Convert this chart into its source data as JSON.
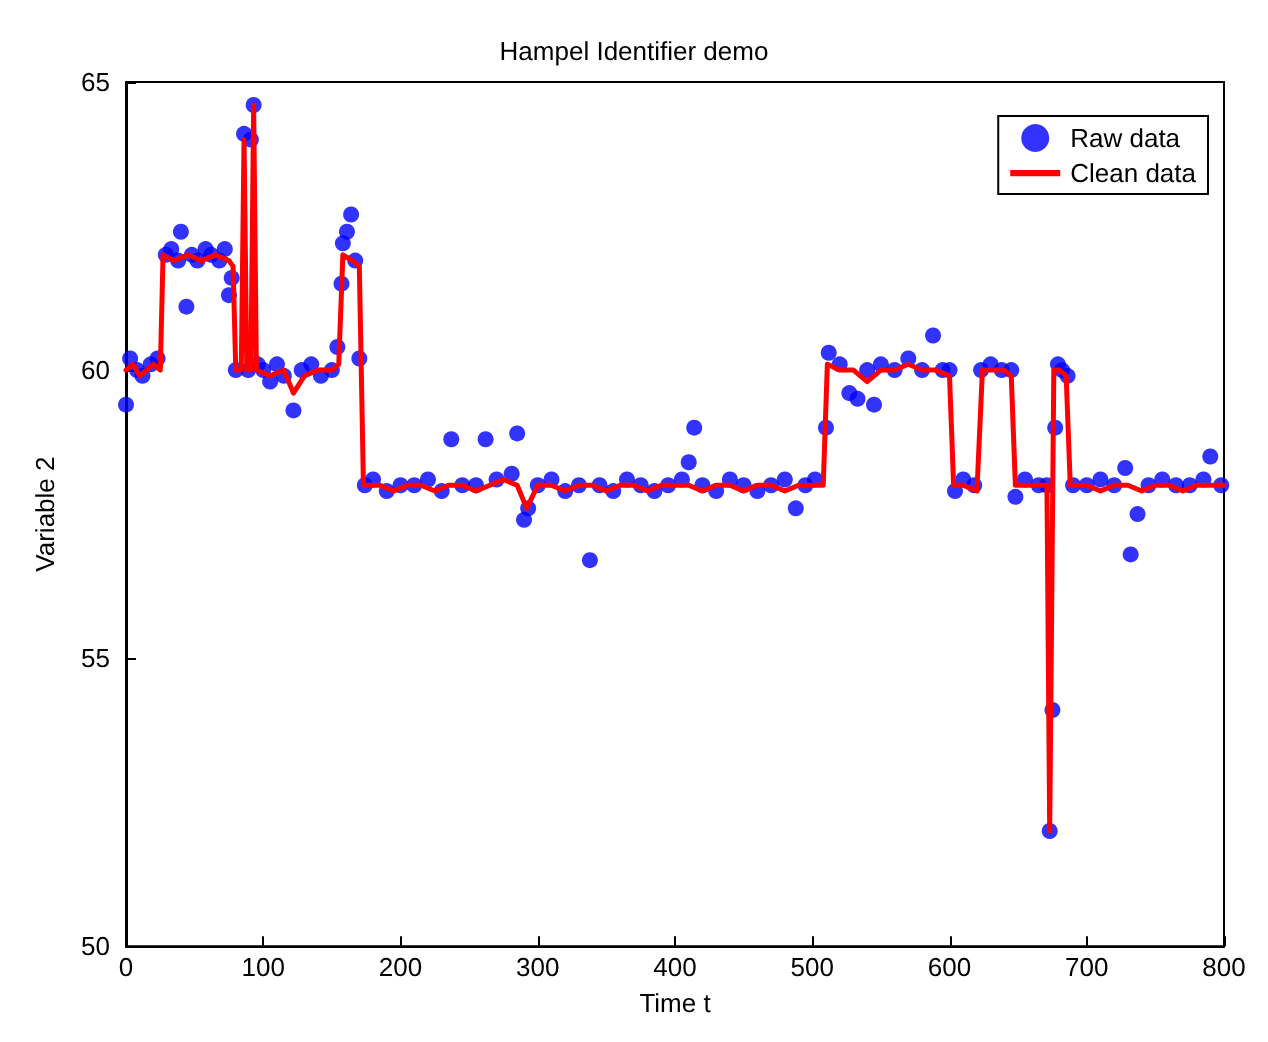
{
  "chart_data": {
    "type": "scatter",
    "title": "Hampel Identifier demo",
    "xlabel": "Time t",
    "ylabel": "Variable 2",
    "xlim": [
      0,
      800
    ],
    "xticks": [
      0,
      100,
      200,
      300,
      400,
      500,
      600,
      700,
      800
    ],
    "ylim": [
      50,
      65
    ],
    "yticks": [
      50,
      55,
      60,
      65
    ],
    "grid": false,
    "legend": "top right",
    "series": [
      {
        "name": "Raw data",
        "marker": "circle",
        "color": "#0000ff",
        "x": [
          0,
          3,
          8,
          12,
          18,
          23,
          29,
          33,
          38,
          40,
          44,
          48,
          52,
          58,
          62,
          68,
          72,
          75,
          77,
          80,
          86,
          89,
          91,
          93,
          96,
          100,
          105,
          110,
          115,
          122,
          128,
          135,
          142,
          150,
          154,
          157,
          158,
          161,
          164,
          167,
          170,
          174,
          180,
          190,
          200,
          210,
          220,
          230,
          237,
          245,
          255,
          262,
          270,
          281,
          285,
          290,
          293,
          300,
          310,
          320,
          330,
          338,
          345,
          355,
          365,
          375,
          385,
          395,
          405,
          410,
          414,
          420,
          430,
          440,
          450,
          460,
          470,
          480,
          488,
          495,
          502,
          510,
          512,
          520,
          527,
          533,
          540,
          545,
          550,
          560,
          570,
          580,
          588,
          595,
          600,
          604,
          610,
          618,
          623,
          630,
          638,
          645,
          648,
          655,
          665,
          671,
          673,
          675,
          677,
          679,
          682,
          686,
          690,
          700,
          710,
          720,
          728,
          732,
          737,
          745,
          755,
          765,
          775,
          785,
          790,
          798
        ],
        "values": [
          59.4,
          60.2,
          60.0,
          59.9,
          60.1,
          60.2,
          62.0,
          62.1,
          61.9,
          62.4,
          61.1,
          62.0,
          61.9,
          62.1,
          62.0,
          61.9,
          62.1,
          61.3,
          61.6,
          60.0,
          64.1,
          60.0,
          64.0,
          64.6,
          60.1,
          60.0,
          59.8,
          60.1,
          59.9,
          59.3,
          60.0,
          60.1,
          59.9,
          60.0,
          60.4,
          61.5,
          62.2,
          62.4,
          62.7,
          61.9,
          60.2,
          58.0,
          58.1,
          57.9,
          58.0,
          58.0,
          58.1,
          57.9,
          58.8,
          58.0,
          58.0,
          58.8,
          58.1,
          58.2,
          58.9,
          57.4,
          57.6,
          58.0,
          58.1,
          57.9,
          58.0,
          56.7,
          58.0,
          57.9,
          58.1,
          58.0,
          57.9,
          58.0,
          58.1,
          58.4,
          59.0,
          58.0,
          57.9,
          58.1,
          58.0,
          57.9,
          58.0,
          58.1,
          57.6,
          58.0,
          58.1,
          59.0,
          60.3,
          60.1,
          59.6,
          59.5,
          60.0,
          59.4,
          60.1,
          60.0,
          60.2,
          60.0,
          60.6,
          60.0,
          60.0,
          57.9,
          58.1,
          58.0,
          60.0,
          60.1,
          60.0,
          60.0,
          57.8,
          58.1,
          58.0,
          58.0,
          52.0,
          54.1,
          59.0,
          60.1,
          60.0,
          59.9,
          58.0,
          58.0,
          58.1,
          58.0,
          58.3,
          56.8,
          57.5,
          58.0,
          58.1,
          58.0,
          58.0,
          58.1,
          58.5,
          58.0
        ]
      },
      {
        "name": "Clean data",
        "type": "line",
        "marker": "none",
        "line_style": "solid",
        "color": "#ff0000",
        "x": [
          0,
          5,
          10,
          15,
          20,
          25,
          27,
          35,
          45,
          55,
          65,
          75,
          78,
          80,
          84,
          86,
          88,
          91,
          93,
          95,
          105,
          115,
          122,
          130,
          140,
          150,
          155,
          158,
          165,
          170,
          173,
          185,
          195,
          205,
          215,
          225,
          235,
          245,
          255,
          265,
          275,
          285,
          292,
          300,
          310,
          320,
          330,
          340,
          350,
          360,
          370,
          380,
          390,
          400,
          410,
          420,
          430,
          440,
          450,
          460,
          470,
          480,
          490,
          500,
          508,
          511,
          520,
          530,
          540,
          550,
          560,
          570,
          580,
          590,
          600,
          603,
          610,
          620,
          624,
          630,
          640,
          645,
          648,
          655,
          665,
          671,
          673,
          676,
          680,
          685,
          688,
          700,
          710,
          720,
          730,
          740,
          750,
          760,
          770,
          780,
          790,
          800
        ],
        "values": [
          60.0,
          60.1,
          59.9,
          60.0,
          60.1,
          60.0,
          62.0,
          61.9,
          62.0,
          61.9,
          62.0,
          61.9,
          61.8,
          60.0,
          60.0,
          64.0,
          60.0,
          60.0,
          64.6,
          60.0,
          59.9,
          60.0,
          59.6,
          59.9,
          60.0,
          60.0,
          60.1,
          62.0,
          61.9,
          61.8,
          58.0,
          58.0,
          57.9,
          58.0,
          58.0,
          57.9,
          58.0,
          58.0,
          57.9,
          58.0,
          58.1,
          58.0,
          57.6,
          58.0,
          58.0,
          57.9,
          58.0,
          58.0,
          57.9,
          58.0,
          58.0,
          57.9,
          58.0,
          58.0,
          58.0,
          57.9,
          58.0,
          58.0,
          57.9,
          58.0,
          58.0,
          57.9,
          58.0,
          58.0,
          58.0,
          60.1,
          60.0,
          60.0,
          59.8,
          60.0,
          60.0,
          60.1,
          60.0,
          60.0,
          59.9,
          58.0,
          58.0,
          57.9,
          60.0,
          60.0,
          60.0,
          59.9,
          58.0,
          58.0,
          58.0,
          58.0,
          52.0,
          60.0,
          60.0,
          59.9,
          58.0,
          58.0,
          57.9,
          58.0,
          58.0,
          57.9,
          58.0,
          58.0,
          57.9,
          58.0,
          58.0,
          58.0
        ]
      }
    ]
  }
}
